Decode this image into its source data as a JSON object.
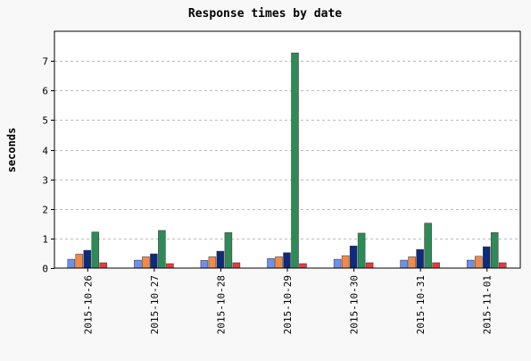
{
  "chart_data": {
    "type": "bar",
    "title": "Response times by date",
    "xlabel": "",
    "ylabel": "seconds",
    "ylim": [
      0,
      8
    ],
    "yticks": [
      0,
      1,
      2,
      3,
      4,
      5,
      6,
      7
    ],
    "grid": true,
    "legend": "none",
    "categories": [
      "2015-10-26",
      "2015-10-27",
      "2015-10-28",
      "2015-10-29",
      "2015-10-30",
      "2015-10-31",
      "2015-11-01"
    ],
    "series": [
      {
        "color": "#6f8fe8",
        "values": [
          0.3,
          0.27,
          0.26,
          0.32,
          0.3,
          0.27,
          0.27
        ]
      },
      {
        "color": "#f08a4b",
        "values": [
          0.47,
          0.38,
          0.38,
          0.38,
          0.42,
          0.38,
          0.4
        ]
      },
      {
        "color": "#0f2a7a",
        "values": [
          0.6,
          0.48,
          0.57,
          0.52,
          0.75,
          0.63,
          0.72
        ]
      },
      {
        "color": "#2e8b57",
        "values": [
          1.22,
          1.27,
          1.2,
          7.27,
          1.18,
          1.52,
          1.2
        ]
      },
      {
        "color": "#e83a3a",
        "values": [
          0.18,
          0.15,
          0.18,
          0.15,
          0.18,
          0.18,
          0.18
        ]
      }
    ]
  }
}
